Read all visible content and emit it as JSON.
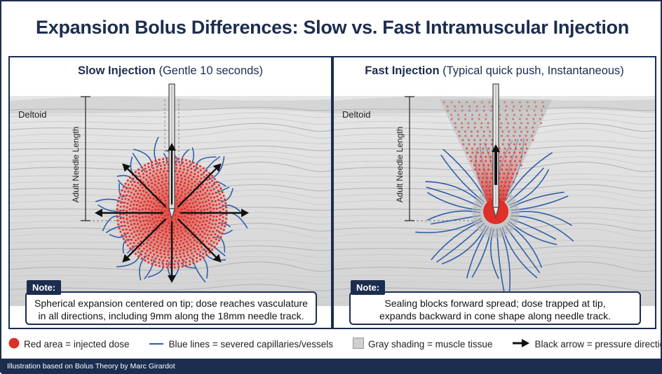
{
  "title": "Expansion Bolus Differences: Slow vs. Fast Intramuscular Injection",
  "panels": [
    {
      "title_bold": "Slow Injection",
      "title_rest": " (Gentle 10 seconds)",
      "muscle_label": "Deltoid",
      "length_label": "Adult Needle Length",
      "note_tag": "Note:",
      "note_lines": [
        "Spherical expansion centered on tip; dose reaches vasculature",
        "in all directions, including 9mm along the 18mm needle track."
      ]
    },
    {
      "title_bold": "Fast Injection",
      "title_rest": " (Typical quick push, Instantaneous)",
      "muscle_label": "Deltoid",
      "length_label": "Adult Needle Length",
      "note_tag": "Note:",
      "note_lines": [
        "Sealing blocks forward spread; dose trapped at tip,",
        "expands backward in cone shape along needle track."
      ]
    }
  ],
  "legend": [
    {
      "icon": "red-dot-icon",
      "label": "Red area = injected dose"
    },
    {
      "icon": "blue-line-icon",
      "label": "Blue lines = severed capillaries/vessels"
    },
    {
      "icon": "gray-square-icon",
      "label": "Gray shading = muscle tissue"
    },
    {
      "icon": "black-arrow-icon",
      "label": "Black arrow = pressure direction"
    }
  ],
  "footer": "Illustration based on Bolus Theory by Marc Girardot",
  "colors": {
    "navy": "#1c2d4f",
    "dose": "#d9302b",
    "vessel": "#2f5fa8",
    "tissue": "#d8d8d8"
  }
}
